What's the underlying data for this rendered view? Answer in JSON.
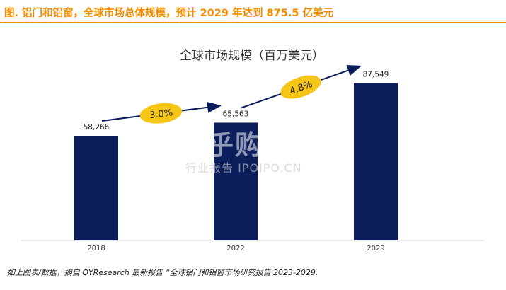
{
  "header": {
    "title": "图.   铝门和铝窗，全球市场总体规模，预计 2029 年达到 875.5 亿美元",
    "accent_color": "#f08c00"
  },
  "chart_data": {
    "type": "bar",
    "title": "全球市场规模（百万美元）",
    "categories": [
      "2018",
      "2022",
      "2029"
    ],
    "values": [
      58266,
      65563,
      87549
    ],
    "value_labels": [
      "58,266",
      "65,563",
      "87,549"
    ],
    "bar_color": "#0b1d5b",
    "growth_labels": [
      "3.0%",
      "4.8%"
    ],
    "growth_badge_color": "#f5c518",
    "arrow_color": "#0b1d5b",
    "ylim": [
      0,
      100000
    ],
    "grid": false,
    "xlabel": "",
    "ylabel": ""
  },
  "watermark": {
    "big": "加乎购家",
    "small": "行业报告 IPOIPO.CN"
  },
  "footnote": "如上图表/数据，摘自 QYResearch 最新报告 “全球铝门和铝窗市场研究报告 2023-2029."
}
